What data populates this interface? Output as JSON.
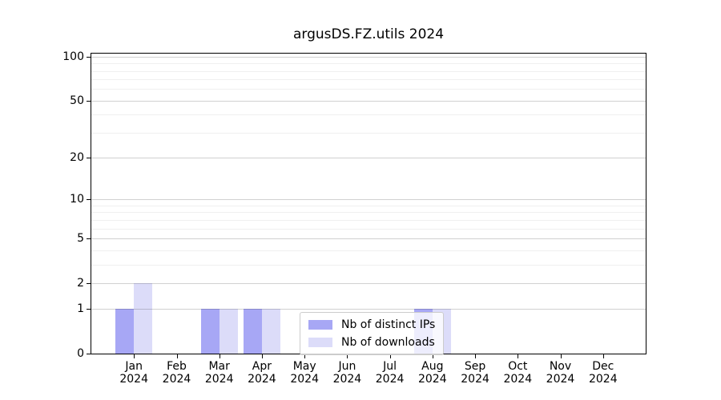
{
  "chart_data": {
    "type": "bar",
    "title": "argusDS.FZ.utils 2024",
    "categories": [
      "Jan",
      "Feb",
      "Mar",
      "Apr",
      "May",
      "Jun",
      "Jul",
      "Aug",
      "Sep",
      "Oct",
      "Nov",
      "Dec"
    ],
    "x_sublabel": "2024",
    "series": [
      {
        "name": "Nb of distinct IPs",
        "color": "#a7a7f5",
        "values": [
          1,
          0,
          1,
          1,
          0,
          0,
          0,
          1,
          0,
          0,
          0,
          0
        ]
      },
      {
        "name": "Nb of downloads",
        "color": "#dcdcf9",
        "values": [
          2,
          0,
          1,
          1,
          0,
          0,
          0,
          1,
          0,
          0,
          0,
          0
        ]
      }
    ],
    "yscale": "log1p",
    "ylim": [
      0,
      105
    ],
    "y_major_ticks": [
      0,
      1,
      2,
      5,
      10,
      20,
      50,
      100
    ],
    "y_minor_gridlines": [
      3,
      4,
      6,
      7,
      8,
      9,
      30,
      40,
      60,
      70,
      80,
      90
    ],
    "xlabel": "",
    "ylabel": "",
    "grid": "horizontal",
    "legend_position": "lower center-right inside plot"
  },
  "colors": {
    "frame": "#000000",
    "major_grid": "#d1d1d1",
    "minor_grid": "#efefef",
    "legend_border": "#cccccc",
    "legend_bg": "rgba(255,255,255,0.8)"
  }
}
